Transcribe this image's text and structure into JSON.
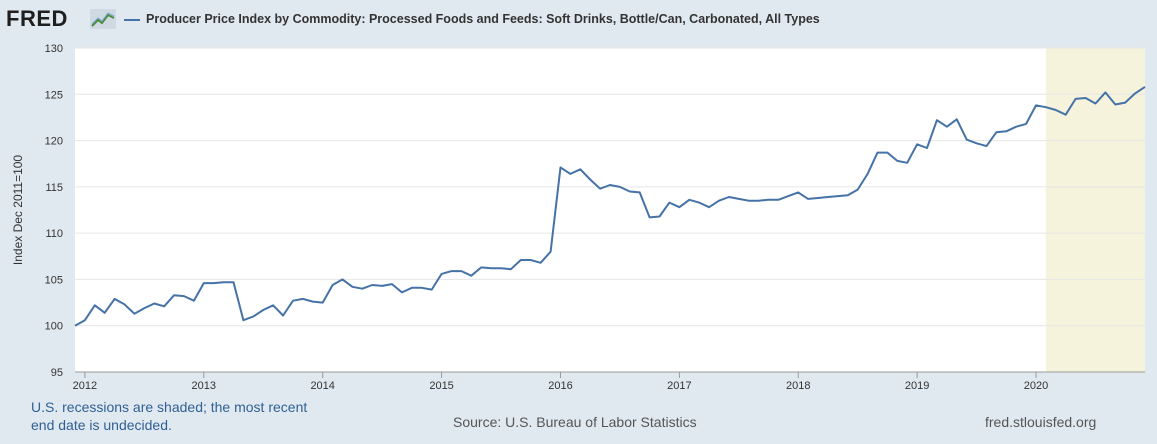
{
  "header": {
    "logo_text": "FRED",
    "legend_label": "Producer Price Index by Commodity: Processed Foods and Feeds: Soft Drinks, Bottle/Can, Carbonated, All Types"
  },
  "footer": {
    "recession_note_line1": "U.S. recessions are shaded; the most recent",
    "recession_note_line2": "end date is undecided.",
    "source": "Source: U.S. Bureau of Labor Statistics",
    "url": "fred.stlouisfed.org"
  },
  "colors": {
    "line": "#4572a7",
    "recession": "#f5f3dc",
    "background": "#e1e9f0",
    "plot": "#ffffff",
    "link": "#2f6096"
  },
  "chart_data": {
    "type": "line",
    "title": "",
    "ylabel": "Index Dec 2011=100",
    "xlabel": "",
    "ylim": [
      95,
      130
    ],
    "yticks": [
      95,
      100,
      105,
      110,
      115,
      120,
      125,
      130
    ],
    "xlim": [
      "2011-12",
      "2020-12"
    ],
    "xticks": [
      "2012",
      "2013",
      "2014",
      "2015",
      "2016",
      "2017",
      "2018",
      "2019",
      "2020"
    ],
    "grid": "horizontal",
    "recessions": [
      {
        "start": "2020-02",
        "end": "2020-12"
      }
    ],
    "series": [
      {
        "name": "Producer Price Index by Commodity: Processed Foods and Feeds: Soft Drinks, Bottle/Can, Carbonated, All Types",
        "x": [
          "2011-12",
          "2012-01",
          "2012-02",
          "2012-03",
          "2012-04",
          "2012-05",
          "2012-06",
          "2012-07",
          "2012-08",
          "2012-09",
          "2012-10",
          "2012-11",
          "2012-12",
          "2013-01",
          "2013-02",
          "2013-03",
          "2013-04",
          "2013-05",
          "2013-06",
          "2013-07",
          "2013-08",
          "2013-09",
          "2013-10",
          "2013-11",
          "2013-12",
          "2014-01",
          "2014-02",
          "2014-03",
          "2014-04",
          "2014-05",
          "2014-06",
          "2014-07",
          "2014-08",
          "2014-09",
          "2014-10",
          "2014-11",
          "2014-12",
          "2015-01",
          "2015-02",
          "2015-03",
          "2015-04",
          "2015-05",
          "2015-06",
          "2015-07",
          "2015-08",
          "2015-09",
          "2015-10",
          "2015-11",
          "2015-12",
          "2016-01",
          "2016-02",
          "2016-03",
          "2016-04",
          "2016-05",
          "2016-06",
          "2016-07",
          "2016-08",
          "2016-09",
          "2016-10",
          "2016-11",
          "2016-12",
          "2017-01",
          "2017-02",
          "2017-03",
          "2017-04",
          "2017-05",
          "2017-06",
          "2017-07",
          "2017-08",
          "2017-09",
          "2017-10",
          "2017-11",
          "2017-12",
          "2018-01",
          "2018-02",
          "2018-03",
          "2018-04",
          "2018-05",
          "2018-06",
          "2018-07",
          "2018-08",
          "2018-09",
          "2018-10",
          "2018-11",
          "2018-12",
          "2019-01",
          "2019-02",
          "2019-03",
          "2019-04",
          "2019-05",
          "2019-06",
          "2019-07",
          "2019-08",
          "2019-09",
          "2019-10",
          "2019-11",
          "2019-12",
          "2020-01",
          "2020-02",
          "2020-03",
          "2020-04",
          "2020-05",
          "2020-06",
          "2020-07",
          "2020-08",
          "2020-09",
          "2020-10",
          "2020-11",
          "2020-12"
        ],
        "values": [
          100.0,
          100.6,
          102.2,
          101.4,
          102.9,
          102.3,
          101.3,
          101.9,
          102.4,
          102.1,
          103.3,
          103.2,
          102.7,
          104.6,
          104.6,
          104.7,
          104.7,
          100.6,
          101.0,
          101.7,
          102.2,
          101.1,
          102.7,
          102.9,
          102.6,
          102.5,
          104.4,
          105.0,
          104.2,
          104.0,
          104.4,
          104.3,
          104.5,
          103.6,
          104.1,
          104.1,
          103.9,
          105.6,
          105.9,
          105.9,
          105.4,
          106.3,
          106.2,
          106.2,
          106.1,
          107.1,
          107.1,
          106.8,
          108.0,
          117.1,
          116.4,
          116.9,
          115.8,
          114.8,
          115.2,
          115.0,
          114.5,
          114.4,
          111.7,
          111.8,
          113.3,
          112.8,
          113.6,
          113.3,
          112.8,
          113.5,
          113.9,
          113.7,
          113.5,
          113.5,
          113.6,
          113.6,
          114.0,
          114.4,
          113.7,
          113.8,
          113.9,
          114.0,
          114.1,
          114.7,
          116.4,
          118.7,
          118.7,
          117.8,
          117.6,
          119.6,
          119.2,
          122.2,
          121.5,
          122.3,
          120.1,
          119.7,
          119.4,
          120.9,
          121.0,
          121.5,
          121.8,
          123.8,
          123.6,
          123.3,
          122.8,
          124.5,
          124.6,
          124.0,
          125.2,
          123.9,
          124.1,
          125.1,
          125.8
        ]
      }
    ]
  }
}
